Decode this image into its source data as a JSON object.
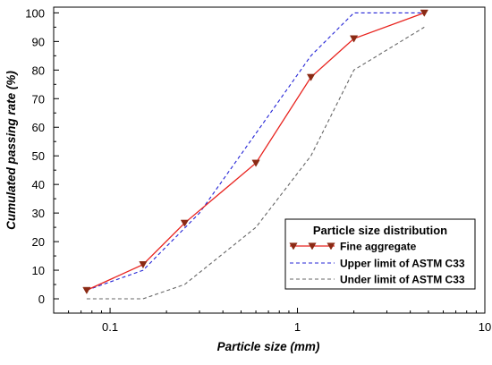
{
  "chart_data": {
    "type": "line",
    "xlabel": "Particle size (mm)",
    "ylabel": "Cumulated passing rate (%)",
    "xscale": "log",
    "xlim": [
      0.05,
      10
    ],
    "ylim": [
      -5,
      102
    ],
    "xticks": [
      0.1,
      1,
      10
    ],
    "xtick_labels": [
      "0.1",
      "1",
      "10"
    ],
    "yticks": [
      0,
      10,
      20,
      30,
      40,
      50,
      60,
      70,
      80,
      90,
      100
    ],
    "ytick_labels": [
      "0",
      "10",
      "20",
      "30",
      "40",
      "50",
      "60",
      "70",
      "80",
      "90",
      "100"
    ],
    "grid": false,
    "legend": {
      "title": "Particle size distribution",
      "position": "lower-right"
    },
    "series": [
      {
        "name": "Fine aggregate",
        "style": "solid",
        "marker": "triangle-down",
        "color": "#e8231e",
        "marker_color": "#8b2a14",
        "x": [
          0.075,
          0.15,
          0.25,
          0.6,
          1.18,
          2.0,
          4.75
        ],
        "y": [
          3,
          12,
          26.5,
          47.5,
          77.5,
          91,
          100
        ]
      },
      {
        "name": "Upper limit of ASTM C33",
        "style": "dashed",
        "color": "#2323d6",
        "x": [
          0.075,
          0.15,
          0.3,
          1.18,
          2.0,
          4.75
        ],
        "y": [
          3,
          10,
          30,
          85,
          100,
          100
        ]
      },
      {
        "name": "Under limit of ASTM C33",
        "style": "dashed",
        "color": "#666666",
        "x": [
          0.075,
          0.15,
          0.25,
          0.6,
          1.18,
          2.0,
          4.75
        ],
        "y": [
          0,
          0,
          5,
          25,
          50,
          80,
          95
        ]
      }
    ]
  }
}
